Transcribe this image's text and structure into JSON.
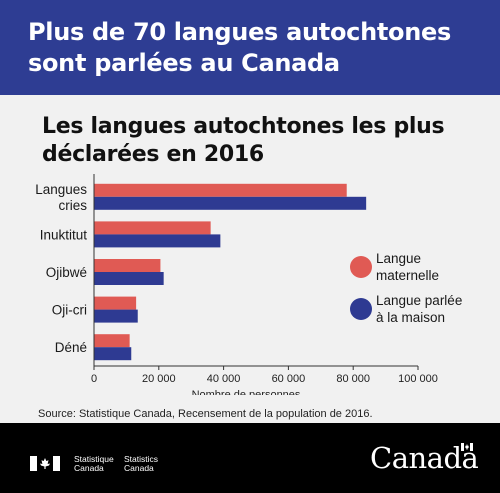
{
  "banner": {
    "line1": "Plus de 70 langues autochtones",
    "line2": "sont parlées au Canada"
  },
  "colors": {
    "banner": "#2e3d93",
    "mother_tongue": "#e05a54",
    "home_language": "#2e3a92",
    "background": "#f1f1f1",
    "footer": "#000000"
  },
  "chart_data": {
    "type": "bar",
    "orientation": "horizontal",
    "title": "Les langues autochtones les plus déclarées en 2016",
    "xlabel": "Nombre de personnes",
    "ylabel": "",
    "xlim": [
      0,
      100000
    ],
    "xticks": [
      0,
      20000,
      40000,
      60000,
      80000,
      100000
    ],
    "xtick_labels": [
      "0",
      "20 000",
      "40 000",
      "60 000",
      "80 000",
      "100 000"
    ],
    "grid": false,
    "legend_position": "right",
    "categories": [
      "Langues cries",
      "Inuktitut",
      "Ojibwé",
      "Oji-cri",
      "Déné"
    ],
    "category_lines": [
      [
        "Langues",
        "cries"
      ],
      [
        "Inuktitut"
      ],
      [
        "Ojibwé"
      ],
      [
        "Oji-cri"
      ],
      [
        "Déné"
      ]
    ],
    "series": [
      {
        "name": "Langue maternelle",
        "name_lines": [
          "Langue",
          "maternelle"
        ],
        "color": "#e05a54",
        "values": [
          78000,
          36000,
          20500,
          13000,
          11000
        ]
      },
      {
        "name": "Langue parlée à la maison",
        "name_lines": [
          "Langue parlée",
          "à la maison"
        ],
        "color": "#2e3a92",
        "values": [
          84000,
          39000,
          21500,
          13500,
          11500
        ]
      }
    ]
  },
  "source": "Source: Statistique Canada, Recensement de la population de 2016.",
  "footer": {
    "agency_fr_line1": "Statistique",
    "agency_fr_line2": "Canada",
    "agency_en_line1": "Statistics",
    "agency_en_line2": "Canada",
    "wordmark": "Canada"
  }
}
